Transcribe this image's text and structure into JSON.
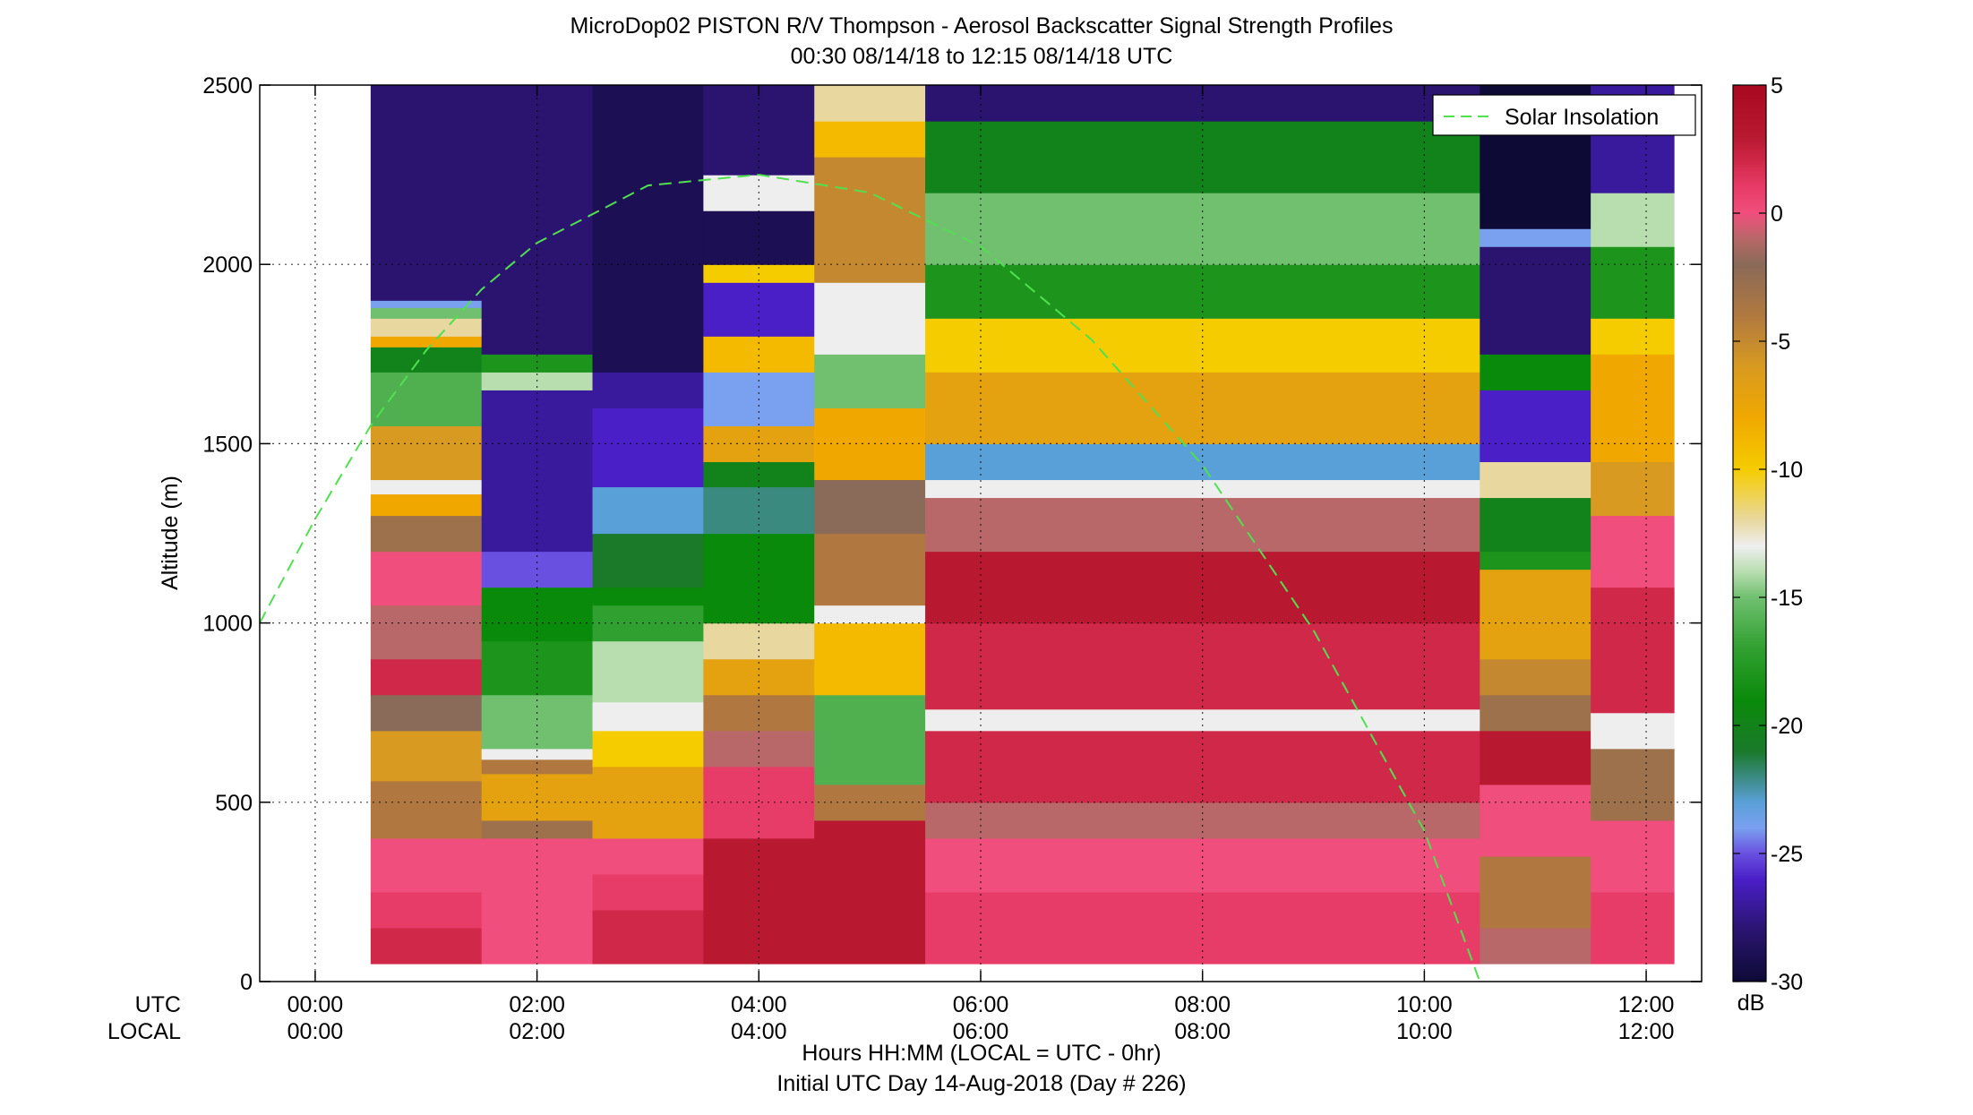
{
  "chart_data": {
    "type": "heatmap",
    "title": "MicroDop02 PISTON R/V Thompson - Aerosol Backscatter Signal Strength Profiles",
    "subtitle": "00:30 08/14/18 to 12:15 08/14/18  UTC",
    "ylabel": "Altitude (m)",
    "xlabel_line1": "Hours HH:MM  (LOCAL = UTC - 0hr)",
    "xlabel_line2": "Initial UTC Day 14-Aug-2018 (Day # 226)",
    "xaxis_row_utc": "UTC",
    "xaxis_row_local": "LOCAL",
    "x_range_hours": [
      -0.5,
      12.5
    ],
    "ylim": [
      0,
      2500
    ],
    "x_ticks": [
      {
        "hour": 0,
        "utc": "00:00",
        "local": "00:00"
      },
      {
        "hour": 2,
        "utc": "02:00",
        "local": "02:00"
      },
      {
        "hour": 4,
        "utc": "04:00",
        "local": "04:00"
      },
      {
        "hour": 6,
        "utc": "06:00",
        "local": "06:00"
      },
      {
        "hour": 8,
        "utc": "08:00",
        "local": "08:00"
      },
      {
        "hour": 10,
        "utc": "10:00",
        "local": "10:00"
      },
      {
        "hour": 12,
        "utc": "12:00",
        "local": "12:00"
      }
    ],
    "y_ticks": [
      0,
      500,
      1000,
      1500,
      2000,
      2500
    ],
    "grid": true,
    "legend_position": "top-right",
    "legend": [
      {
        "label": "Solar Insolation",
        "color": "#50e050",
        "style": "dashed"
      }
    ],
    "colorbar": {
      "range": [
        -30,
        5
      ],
      "ticks": [
        5,
        0,
        -5,
        -10,
        -15,
        -20,
        -25,
        -30
      ],
      "unit": "dB"
    },
    "columns": [
      {
        "start": 0.5,
        "end": 1.5,
        "bands": [
          [
            50,
            150,
            2
          ],
          [
            150,
            250,
            1
          ],
          [
            250,
            400,
            0
          ],
          [
            400,
            560,
            -4
          ],
          [
            560,
            700,
            -6
          ],
          [
            700,
            800,
            -2
          ],
          [
            800,
            900,
            2
          ],
          [
            900,
            1050,
            -1
          ],
          [
            1050,
            1200,
            0
          ],
          [
            1200,
            1300,
            -3
          ],
          [
            1300,
            1360,
            -8
          ],
          [
            1360,
            1400,
            -13
          ],
          [
            1400,
            1550,
            -6
          ],
          [
            1550,
            1700,
            -16
          ],
          [
            1700,
            1770,
            -20
          ],
          [
            1770,
            1800,
            -8
          ],
          [
            1800,
            1850,
            -12
          ],
          [
            1850,
            1880,
            -15
          ],
          [
            1880,
            1900,
            -24
          ],
          [
            1900,
            2500,
            -28
          ]
        ]
      },
      {
        "start": 1.5,
        "end": 2.5,
        "bands": [
          [
            50,
            320,
            0
          ],
          [
            320,
            400,
            0
          ],
          [
            400,
            450,
            -3
          ],
          [
            450,
            580,
            -7
          ],
          [
            580,
            620,
            -4
          ],
          [
            620,
            650,
            -13
          ],
          [
            650,
            800,
            -15
          ],
          [
            800,
            950,
            -18
          ],
          [
            950,
            1100,
            -19
          ],
          [
            1100,
            1200,
            -25
          ],
          [
            1200,
            1650,
            -27
          ],
          [
            1650,
            1700,
            -14
          ],
          [
            1700,
            1750,
            -18
          ],
          [
            1750,
            2500,
            -28
          ]
        ]
      },
      {
        "start": 2.5,
        "end": 3.5,
        "bands": [
          [
            50,
            200,
            2
          ],
          [
            200,
            300,
            1
          ],
          [
            300,
            400,
            0
          ],
          [
            400,
            600,
            -7
          ],
          [
            600,
            700,
            -10
          ],
          [
            700,
            780,
            -13
          ],
          [
            780,
            950,
            -14
          ],
          [
            950,
            1050,
            -17
          ],
          [
            1050,
            1100,
            -19
          ],
          [
            1100,
            1250,
            -21
          ],
          [
            1250,
            1380,
            -23
          ],
          [
            1380,
            1600,
            -26
          ],
          [
            1600,
            1700,
            -27
          ],
          [
            1700,
            2500,
            -29
          ]
        ]
      },
      {
        "start": 3.5,
        "end": 4.5,
        "bands": [
          [
            50,
            400,
            3
          ],
          [
            400,
            600,
            1
          ],
          [
            600,
            700,
            -1
          ],
          [
            700,
            800,
            -4
          ],
          [
            800,
            900,
            -7
          ],
          [
            900,
            1000,
            -12
          ],
          [
            1000,
            1250,
            -19
          ],
          [
            1250,
            1380,
            -22
          ],
          [
            1380,
            1450,
            -20
          ],
          [
            1450,
            1550,
            -7
          ],
          [
            1550,
            1700,
            -24
          ],
          [
            1700,
            1800,
            -9
          ],
          [
            1800,
            1950,
            -26
          ],
          [
            1950,
            2000,
            -10
          ],
          [
            2000,
            2150,
            -29
          ],
          [
            2150,
            2250,
            -13
          ],
          [
            2250,
            2500,
            -28
          ]
        ]
      },
      {
        "start": 4.5,
        "end": 5.5,
        "bands": [
          [
            50,
            200,
            3
          ],
          [
            200,
            450,
            3
          ],
          [
            450,
            550,
            -4
          ],
          [
            550,
            800,
            -16
          ],
          [
            800,
            1000,
            -9
          ],
          [
            1000,
            1050,
            -13
          ],
          [
            1050,
            1250,
            -4
          ],
          [
            1250,
            1400,
            -2
          ],
          [
            1400,
            1600,
            -8
          ],
          [
            1600,
            1750,
            -15
          ],
          [
            1750,
            1950,
            -13
          ],
          [
            1950,
            2300,
            -5
          ],
          [
            2300,
            2400,
            -9
          ],
          [
            2400,
            2500,
            -12
          ]
        ]
      },
      {
        "start": 5.5,
        "end": 10.5,
        "bands": [
          [
            50,
            250,
            1
          ],
          [
            250,
            400,
            0
          ],
          [
            400,
            500,
            -1
          ],
          [
            500,
            700,
            2
          ],
          [
            700,
            760,
            -13
          ],
          [
            760,
            1000,
            2
          ],
          [
            1000,
            1200,
            3
          ],
          [
            1200,
            1350,
            -1
          ],
          [
            1350,
            1400,
            -13
          ],
          [
            1400,
            1500,
            -23
          ],
          [
            1500,
            1700,
            -7
          ],
          [
            1700,
            1850,
            -10
          ],
          [
            1850,
            2000,
            -18
          ],
          [
            2000,
            2200,
            -15
          ],
          [
            2200,
            2400,
            -20
          ],
          [
            2400,
            2500,
            -28
          ]
        ]
      },
      {
        "start": 10.5,
        "end": 11.5,
        "bands": [
          [
            50,
            150,
            -1
          ],
          [
            150,
            350,
            -4
          ],
          [
            350,
            550,
            0
          ],
          [
            550,
            700,
            3
          ],
          [
            700,
            800,
            -3
          ],
          [
            800,
            900,
            -5
          ],
          [
            900,
            1150,
            -7
          ],
          [
            1150,
            1200,
            -18
          ],
          [
            1200,
            1350,
            -20
          ],
          [
            1350,
            1450,
            -12
          ],
          [
            1450,
            1650,
            -26
          ],
          [
            1650,
            1750,
            -19
          ],
          [
            1750,
            2050,
            -28
          ],
          [
            2050,
            2100,
            -24
          ],
          [
            2100,
            2500,
            -30
          ]
        ]
      },
      {
        "start": 11.5,
        "end": 12.25,
        "bands": [
          [
            50,
            250,
            1
          ],
          [
            250,
            450,
            0
          ],
          [
            450,
            650,
            -3
          ],
          [
            650,
            750,
            -13
          ],
          [
            750,
            1100,
            2
          ],
          [
            1100,
            1300,
            0
          ],
          [
            1300,
            1450,
            -6
          ],
          [
            1450,
            1750,
            -8
          ],
          [
            1750,
            1850,
            -10
          ],
          [
            1850,
            2050,
            -18
          ],
          [
            2050,
            2200,
            -14
          ],
          [
            2200,
            2500,
            -27
          ]
        ]
      }
    ],
    "solar_insolation_curve": [
      {
        "hour": -0.5,
        "altitude": 1000
      },
      {
        "hour": 0.0,
        "altitude": 1290
      },
      {
        "hour": 0.5,
        "altitude": 1550
      },
      {
        "hour": 1.0,
        "altitude": 1760
      },
      {
        "hour": 1.5,
        "altitude": 1930
      },
      {
        "hour": 2.0,
        "altitude": 2060
      },
      {
        "hour": 3.0,
        "altitude": 2220
      },
      {
        "hour": 4.0,
        "altitude": 2250
      },
      {
        "hour": 5.0,
        "altitude": 2200
      },
      {
        "hour": 6.0,
        "altitude": 2050
      },
      {
        "hour": 7.0,
        "altitude": 1790
      },
      {
        "hour": 8.0,
        "altitude": 1440
      },
      {
        "hour": 9.0,
        "altitude": 980
      },
      {
        "hour": 10.0,
        "altitude": 420
      },
      {
        "hour": 10.5,
        "altitude": 0
      }
    ]
  }
}
